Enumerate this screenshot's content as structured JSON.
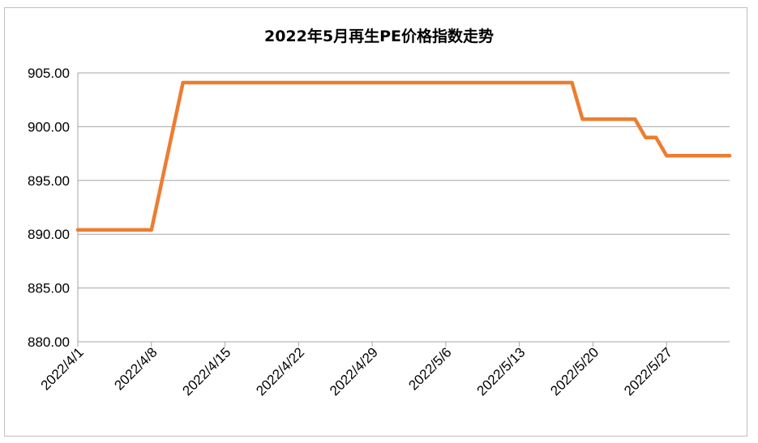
{
  "chart_data": {
    "type": "line",
    "title": "2022年5月再生PE价格指数走势",
    "xlabel": "",
    "ylabel": "",
    "ylim": [
      880,
      905
    ],
    "yticks": [
      "880.00",
      "885.00",
      "890.00",
      "895.00",
      "900.00",
      "905.00"
    ],
    "xticks": [
      "2022/4/1",
      "2022/4/8",
      "2022/4/15",
      "2022/4/22",
      "2022/4/29",
      "2022/5/6",
      "2022/5/13",
      "2022/5/20",
      "2022/5/27"
    ],
    "grid": true,
    "legend": "none",
    "line_color": "#ED7D31",
    "x_range": [
      "2022-04-01",
      "2022-06-02"
    ],
    "series": [
      {
        "points": [
          {
            "x": "2022-04-01",
            "y": 890.4
          },
          {
            "x": "2022-04-08",
            "y": 890.4
          },
          {
            "x": "2022-04-11",
            "y": 904.1
          },
          {
            "x": "2022-05-18",
            "y": 904.1
          },
          {
            "x": "2022-05-19",
            "y": 900.7
          },
          {
            "x": "2022-05-24",
            "y": 900.7
          },
          {
            "x": "2022-05-25",
            "y": 899.0
          },
          {
            "x": "2022-05-26",
            "y": 899.0
          },
          {
            "x": "2022-05-27",
            "y": 897.3
          },
          {
            "x": "2022-06-02",
            "y": 897.3
          }
        ]
      }
    ]
  }
}
